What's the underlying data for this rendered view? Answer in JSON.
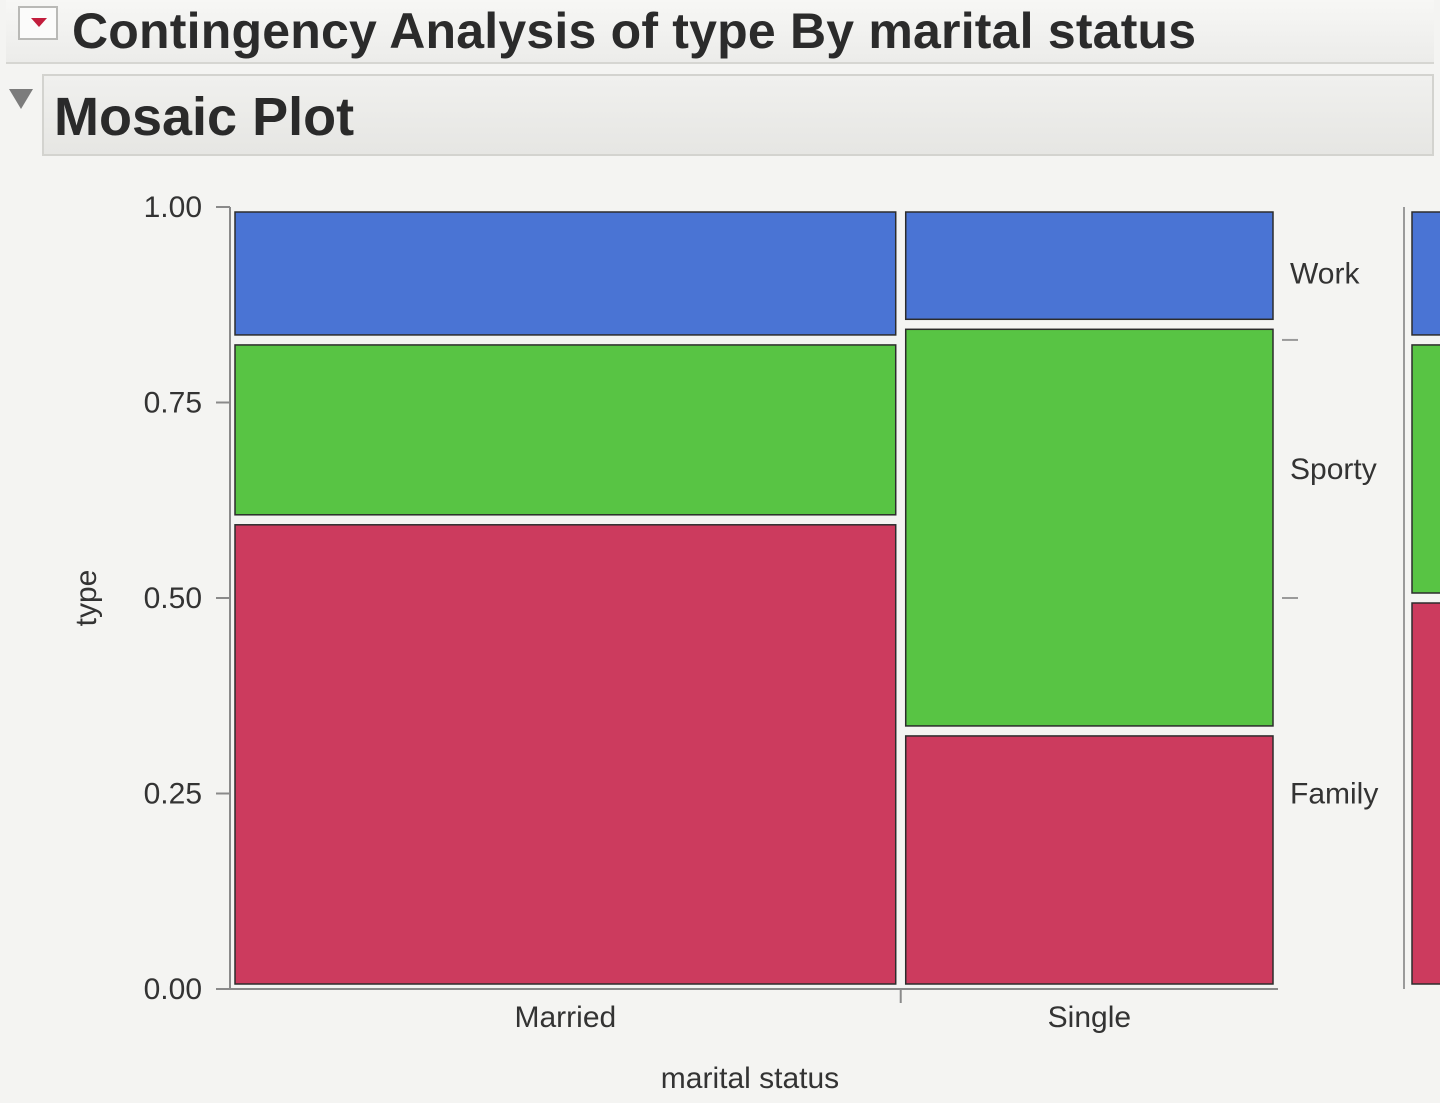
{
  "header": {
    "title": "Contingency Analysis of type By marital status",
    "section_title": "Mosaic Plot"
  },
  "icons": {
    "disclosure": "red-triangle-menu-icon",
    "section_toggle": "collapse-triangle-icon"
  },
  "chart_data": {
    "type": "mosaic",
    "xlabel": "marital status",
    "ylabel": "type",
    "ylim": [
      0,
      1
    ],
    "yticks": [
      "0.00",
      "0.25",
      "0.50",
      "0.75",
      "1.00"
    ],
    "categories": [
      "Married",
      "Single"
    ],
    "category_widths": [
      0.64,
      0.36
    ],
    "series": [
      {
        "name": "Family",
        "color": "#cc3b5e",
        "values": [
          0.6,
          0.33
        ]
      },
      {
        "name": "Sporty",
        "color": "#58c444",
        "values": [
          0.23,
          0.52
        ]
      },
      {
        "name": "Work",
        "color": "#4a74d4",
        "values": [
          0.17,
          0.15
        ]
      }
    ],
    "marginal": {
      "Family": 0.5,
      "Sporty": 0.33,
      "Work": 0.17
    }
  }
}
